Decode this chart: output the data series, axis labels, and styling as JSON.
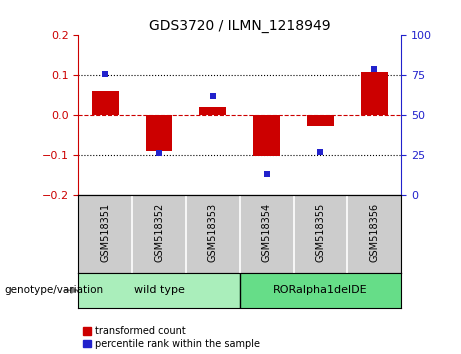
{
  "title": "GDS3720 / ILMN_1218949",
  "samples": [
    "GSM518351",
    "GSM518352",
    "GSM518353",
    "GSM518354",
    "GSM518355",
    "GSM518356"
  ],
  "red_values": [
    0.06,
    -0.09,
    0.02,
    -0.102,
    -0.028,
    0.108
  ],
  "blue_values_pct": [
    76,
    26,
    62,
    13,
    27,
    79
  ],
  "ylim_left": [
    -0.2,
    0.2
  ],
  "ylim_right": [
    0,
    100
  ],
  "yticks_left": [
    -0.2,
    -0.1,
    0.0,
    0.1,
    0.2
  ],
  "yticks_right": [
    0,
    25,
    50,
    75,
    100
  ],
  "hlines_dotted": [
    0.1,
    -0.1
  ],
  "hline_dashed": 0.0,
  "red_color": "#CC0000",
  "blue_color": "#2222CC",
  "bar_width": 0.5,
  "group_labels": [
    "wild type",
    "RORalpha1delDE"
  ],
  "group_ranges": [
    [
      0,
      3
    ],
    [
      3,
      6
    ]
  ],
  "group_color_light": "#AAEEBB",
  "group_color_dark": "#66DD88",
  "xlabel_area": "genotype/variation",
  "legend_red": "transformed count",
  "legend_blue": "percentile rank within the sample",
  "tick_color_left": "#CC0000",
  "tick_color_right": "#2222CC",
  "sample_bg_color": "#CCCCCC",
  "sample_divider_color": "#FFFFFF"
}
